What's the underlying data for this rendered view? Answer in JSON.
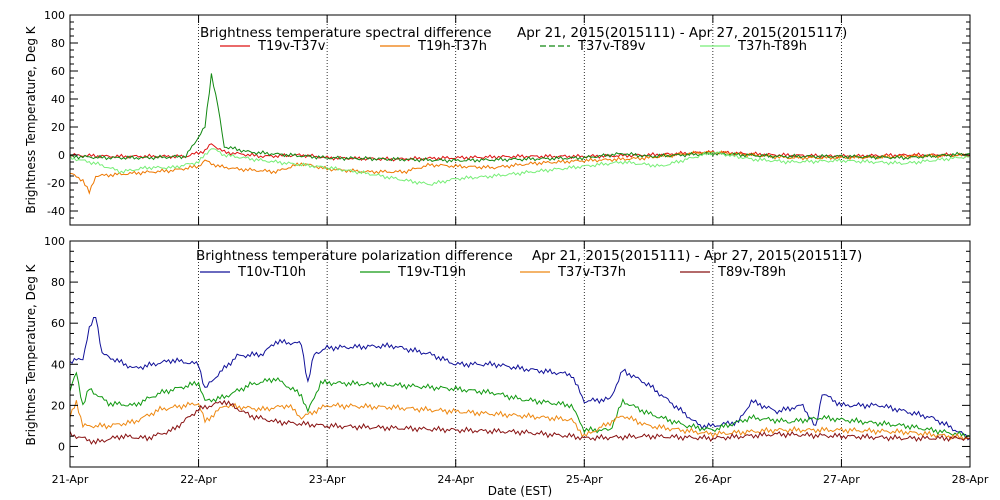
{
  "chart_data": [
    {
      "type": "line",
      "title": "Brightness temperature spectral difference",
      "date_range": "Apr 21, 2015(2015111) - Apr 27, 2015(2015117)",
      "ylabel": "Brightness Temperature, Deg K",
      "xlabel": "",
      "ylim": [
        -50,
        100
      ],
      "yticks": [
        -40,
        -20,
        0,
        20,
        40,
        60,
        80,
        100
      ],
      "xlim": [
        21,
        28
      ],
      "grid": "vertical dotted lines at each day",
      "legend_placement": "top, single row",
      "series": [
        {
          "name": "T19v-T37v",
          "color": "#dd1111",
          "points": [
            [
              21.0,
              0
            ],
            [
              21.3,
              -1
            ],
            [
              21.6,
              -1
            ],
            [
              21.9,
              -1
            ],
            [
              22.05,
              3
            ],
            [
              22.1,
              8
            ],
            [
              22.2,
              2
            ],
            [
              22.5,
              -1
            ],
            [
              22.8,
              0
            ],
            [
              23.0,
              -2
            ],
            [
              23.5,
              -3
            ],
            [
              24.0,
              -2
            ],
            [
              24.5,
              -1
            ],
            [
              25.0,
              -1
            ],
            [
              25.5,
              0
            ],
            [
              26.0,
              2
            ],
            [
              26.5,
              0
            ],
            [
              27.0,
              -1
            ],
            [
              27.5,
              0
            ],
            [
              28.0,
              0
            ]
          ]
        },
        {
          "name": "T19h-T37h",
          "color": "#ee7700",
          "points": [
            [
              21.0,
              -13
            ],
            [
              21.1,
              -18
            ],
            [
              21.15,
              -27
            ],
            [
              21.2,
              -15
            ],
            [
              21.5,
              -13
            ],
            [
              21.8,
              -11
            ],
            [
              22.0,
              -8
            ],
            [
              22.05,
              -4
            ],
            [
              22.15,
              -8
            ],
            [
              22.3,
              -10
            ],
            [
              22.6,
              -12
            ],
            [
              22.8,
              -6
            ],
            [
              23.0,
              -10
            ],
            [
              23.3,
              -12
            ],
            [
              23.6,
              -12
            ],
            [
              23.8,
              -7
            ],
            [
              24.0,
              -8
            ],
            [
              24.3,
              -9
            ],
            [
              24.6,
              -6
            ],
            [
              25.0,
              -4
            ],
            [
              25.3,
              -3
            ],
            [
              25.5,
              -2
            ],
            [
              25.8,
              1
            ],
            [
              26.0,
              2
            ],
            [
              26.3,
              0
            ],
            [
              26.6,
              -2
            ],
            [
              27.0,
              -2
            ],
            [
              27.5,
              -1
            ],
            [
              28.0,
              0
            ]
          ]
        },
        {
          "name": "T37v-T89v",
          "color": "#118811",
          "points": [
            [
              21.0,
              -1
            ],
            [
              21.3,
              -2
            ],
            [
              21.6,
              -2
            ],
            [
              21.9,
              -1
            ],
            [
              22.05,
              20
            ],
            [
              22.1,
              58
            ],
            [
              22.15,
              35
            ],
            [
              22.2,
              6
            ],
            [
              22.4,
              2
            ],
            [
              22.7,
              0
            ],
            [
              23.0,
              -2
            ],
            [
              23.5,
              -3
            ],
            [
              24.0,
              -4
            ],
            [
              24.5,
              -3
            ],
            [
              25.0,
              -2
            ],
            [
              25.3,
              1
            ],
            [
              25.5,
              -1
            ],
            [
              26.0,
              1
            ],
            [
              26.5,
              -1
            ],
            [
              27.0,
              -1
            ],
            [
              27.5,
              -2
            ],
            [
              28.0,
              1
            ]
          ]
        },
        {
          "name": "T37h-T89h",
          "color": "#77ee77",
          "points": [
            [
              21.0,
              -2
            ],
            [
              21.2,
              -6
            ],
            [
              21.4,
              -12
            ],
            [
              21.6,
              -9
            ],
            [
              21.8,
              -9
            ],
            [
              22.0,
              -5
            ],
            [
              22.1,
              5
            ],
            [
              22.2,
              0
            ],
            [
              22.5,
              -4
            ],
            [
              22.8,
              -7
            ],
            [
              23.0,
              -9
            ],
            [
              23.3,
              -13
            ],
            [
              23.6,
              -18
            ],
            [
              23.8,
              -21
            ],
            [
              24.0,
              -17
            ],
            [
              24.3,
              -15
            ],
            [
              24.6,
              -12
            ],
            [
              25.0,
              -8
            ],
            [
              25.3,
              -5
            ],
            [
              25.6,
              -8
            ],
            [
              26.0,
              2
            ],
            [
              26.3,
              -3
            ],
            [
              26.6,
              -5
            ],
            [
              27.0,
              -4
            ],
            [
              27.5,
              -6
            ],
            [
              28.0,
              -1
            ]
          ]
        }
      ]
    },
    {
      "type": "line",
      "title": "Brightness temperature polarization difference",
      "date_range": "Apr 21, 2015(2015111) - Apr 27, 2015(2015117)",
      "ylabel": "Brightnes Temperature, Deg K",
      "xlabel": "Date (EST)",
      "ylim": [
        -10,
        100
      ],
      "yticks": [
        0,
        20,
        40,
        60,
        80,
        100
      ],
      "xlim": [
        21,
        28
      ],
      "xticks": [
        "21-Apr",
        "22-Apr",
        "23-Apr",
        "24-Apr",
        "25-Apr",
        "26-Apr",
        "27-Apr",
        "28-Apr"
      ],
      "grid": "vertical dotted lines at each day",
      "legend_placement": "top, single row",
      "series": [
        {
          "name": "T10v-T10h",
          "color": "#111199",
          "points": [
            [
              21.0,
              41
            ],
            [
              21.1,
              43
            ],
            [
              21.15,
              57
            ],
            [
              21.2,
              64
            ],
            [
              21.25,
              45
            ],
            [
              21.5,
              38
            ],
            [
              21.8,
              42
            ],
            [
              22.0,
              40
            ],
            [
              22.05,
              28
            ],
            [
              22.15,
              35
            ],
            [
              22.3,
              44
            ],
            [
              22.5,
              45
            ],
            [
              22.6,
              51
            ],
            [
              22.8,
              50
            ],
            [
              22.85,
              31
            ],
            [
              22.9,
              45
            ],
            [
              23.0,
              48
            ],
            [
              23.5,
              49
            ],
            [
              23.8,
              45
            ],
            [
              24.0,
              40
            ],
            [
              24.3,
              40
            ],
            [
              24.5,
              38
            ],
            [
              24.9,
              35
            ],
            [
              25.0,
              22
            ],
            [
              25.2,
              23
            ],
            [
              25.3,
              37
            ],
            [
              25.5,
              30
            ],
            [
              25.7,
              20
            ],
            [
              25.9,
              10
            ],
            [
              26.0,
              10
            ],
            [
              26.2,
              12
            ],
            [
              26.3,
              22
            ],
            [
              26.5,
              17
            ],
            [
              26.7,
              20
            ],
            [
              26.8,
              9
            ],
            [
              26.85,
              26
            ],
            [
              27.0,
              20
            ],
            [
              27.3,
              20
            ],
            [
              27.5,
              17
            ],
            [
              27.7,
              14
            ],
            [
              27.8,
              11
            ],
            [
              28.0,
              4
            ]
          ]
        },
        {
          "name": "T19v-T19h",
          "color": "#119911",
          "points": [
            [
              21.0,
              27
            ],
            [
              21.05,
              36
            ],
            [
              21.1,
              20
            ],
            [
              21.15,
              28
            ],
            [
              21.3,
              21
            ],
            [
              21.5,
              20
            ],
            [
              21.7,
              26
            ],
            [
              22.0,
              31
            ],
            [
              22.05,
              22
            ],
            [
              22.2,
              24
            ],
            [
              22.4,
              30
            ],
            [
              22.6,
              33
            ],
            [
              22.8,
              25
            ],
            [
              22.85,
              17
            ],
            [
              22.95,
              31
            ],
            [
              23.0,
              31
            ],
            [
              23.5,
              30
            ],
            [
              24.0,
              28
            ],
            [
              24.3,
              26
            ],
            [
              24.5,
              23
            ],
            [
              24.9,
              20
            ],
            [
              25.0,
              8
            ],
            [
              25.2,
              8
            ],
            [
              25.3,
              22
            ],
            [
              25.5,
              16
            ],
            [
              25.8,
              10
            ],
            [
              26.0,
              8
            ],
            [
              26.3,
              14
            ],
            [
              26.6,
              12
            ],
            [
              26.85,
              14
            ],
            [
              27.0,
              13
            ],
            [
              27.5,
              10
            ],
            [
              28.0,
              5
            ]
          ]
        },
        {
          "name": "T37v-T37h",
          "color": "#ee8811",
          "points": [
            [
              21.0,
              14
            ],
            [
              21.05,
              22
            ],
            [
              21.1,
              10
            ],
            [
              21.3,
              10
            ],
            [
              21.5,
              12
            ],
            [
              21.7,
              18
            ],
            [
              22.0,
              21
            ],
            [
              22.05,
              12
            ],
            [
              22.2,
              20
            ],
            [
              22.5,
              18
            ],
            [
              22.7,
              20
            ],
            [
              22.8,
              14
            ],
            [
              23.0,
              20
            ],
            [
              23.5,
              19
            ],
            [
              24.0,
              17
            ],
            [
              24.5,
              15
            ],
            [
              24.9,
              13
            ],
            [
              25.0,
              5
            ],
            [
              25.3,
              15
            ],
            [
              25.5,
              10
            ],
            [
              26.0,
              6
            ],
            [
              26.5,
              8
            ],
            [
              27.0,
              8
            ],
            [
              27.5,
              7
            ],
            [
              28.0,
              4
            ]
          ]
        },
        {
          "name": "T89v-T89h",
          "color": "#881111",
          "points": [
            [
              21.0,
              6
            ],
            [
              21.2,
              2
            ],
            [
              21.4,
              5
            ],
            [
              21.6,
              4
            ],
            [
              21.8,
              8
            ],
            [
              22.0,
              18
            ],
            [
              22.2,
              22
            ],
            [
              22.4,
              15
            ],
            [
              22.6,
              12
            ],
            [
              23.0,
              10
            ],
            [
              23.5,
              9
            ],
            [
              24.0,
              8
            ],
            [
              24.5,
              7
            ],
            [
              24.9,
              5
            ],
            [
              25.0,
              4
            ],
            [
              25.5,
              5
            ],
            [
              26.0,
              4
            ],
            [
              26.5,
              6
            ],
            [
              27.0,
              5
            ],
            [
              27.5,
              4
            ],
            [
              28.0,
              4
            ]
          ]
        }
      ]
    }
  ]
}
